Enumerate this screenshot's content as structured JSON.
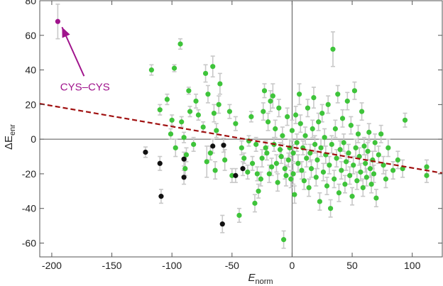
{
  "chart_data": {
    "type": "scatter",
    "title": "",
    "xlabel": {
      "main": "E",
      "sub": "norm"
    },
    "ylabel": {
      "prefix": "ΔE",
      "sub": "enr"
    },
    "xlim": [
      -210,
      125
    ],
    "ylim": [
      -68,
      80
    ],
    "xticks": [
      -200,
      -150,
      -100,
      -50,
      0,
      50,
      100
    ],
    "yticks": [
      -60,
      -40,
      -20,
      0,
      20,
      40,
      60,
      80
    ],
    "grid": false,
    "reference_lines": {
      "x": 0,
      "y": 0
    },
    "colors": {
      "green": "#3ec43a",
      "black": "#111111",
      "highlight": "#a0148c",
      "fit": "#a01010",
      "errorbar": "#c8c8c8",
      "axes": "#555555"
    },
    "fit_line": {
      "x": [
        -210,
        125
      ],
      "y": [
        20.5,
        -19.6
      ],
      "style": "dashed"
    },
    "highlight": {
      "x": -195,
      "y": 68,
      "err": 10,
      "label": "CYS–CYS",
      "label_x": -193,
      "label_y": 43
    },
    "series_black": [
      {
        "x": -122,
        "y": -7.5,
        "err": 3
      },
      {
        "x": -110,
        "y": -14,
        "err": 4
      },
      {
        "x": -109,
        "y": -33,
        "err": 4
      },
      {
        "x": -90,
        "y": -11.5,
        "err": 4
      },
      {
        "x": -90,
        "y": -22,
        "err": 4
      },
      {
        "x": -66,
        "y": -4,
        "err": 4
      },
      {
        "x": -58,
        "y": -49,
        "err": 5
      },
      {
        "x": -57,
        "y": -3.5,
        "err": 4
      },
      {
        "x": -47,
        "y": -21,
        "err": 4
      },
      {
        "x": -41,
        "y": -17,
        "err": 4
      }
    ],
    "series_green": [
      {
        "x": -117,
        "y": 40,
        "err": 3
      },
      {
        "x": -110,
        "y": 17,
        "err": 3
      },
      {
        "x": -104,
        "y": 23,
        "err": 3
      },
      {
        "x": -101,
        "y": 3,
        "err": 3
      },
      {
        "x": -100,
        "y": 11,
        "err": 3
      },
      {
        "x": -98,
        "y": 41,
        "err": 2
      },
      {
        "x": -97,
        "y": -5,
        "err": 5
      },
      {
        "x": -93,
        "y": 55,
        "err": 3
      },
      {
        "x": -92,
        "y": 10,
        "err": 3
      },
      {
        "x": -90,
        "y": 1,
        "err": 3
      },
      {
        "x": -89,
        "y": -17,
        "err": 4
      },
      {
        "x": -88,
        "y": -9,
        "err": 4
      },
      {
        "x": -86,
        "y": 28,
        "err": 2
      },
      {
        "x": -85,
        "y": 16,
        "err": 3
      },
      {
        "x": -82,
        "y": -3,
        "err": 4
      },
      {
        "x": -80,
        "y": 22,
        "err": 4
      },
      {
        "x": -78,
        "y": 14,
        "err": 3
      },
      {
        "x": -74,
        "y": 7,
        "err": 3
      },
      {
        "x": -72,
        "y": 38,
        "err": 5
      },
      {
        "x": -71,
        "y": -13,
        "err": 9
      },
      {
        "x": -70,
        "y": 26,
        "err": 5
      },
      {
        "x": -68,
        "y": -8,
        "err": 4
      },
      {
        "x": -66,
        "y": 42,
        "err": 6
      },
      {
        "x": -65,
        "y": 15,
        "err": 5
      },
      {
        "x": -64,
        "y": -18,
        "err": 5
      },
      {
        "x": -63,
        "y": 5,
        "err": 4
      },
      {
        "x": -61,
        "y": 20,
        "err": 5
      },
      {
        "x": -60,
        "y": 32,
        "err": 6
      },
      {
        "x": -56,
        "y": -12,
        "err": 6
      },
      {
        "x": -52,
        "y": 16,
        "err": 4
      },
      {
        "x": -50,
        "y": -21,
        "err": 4
      },
      {
        "x": -47,
        "y": 9,
        "err": 4
      },
      {
        "x": -44,
        "y": -44,
        "err": 4
      },
      {
        "x": -42,
        "y": -5,
        "err": 4
      },
      {
        "x": -40,
        "y": -11,
        "err": 3
      },
      {
        "x": -37,
        "y": -19,
        "err": 4
      },
      {
        "x": -36,
        "y": -1,
        "err": 3
      },
      {
        "x": -34,
        "y": 13,
        "err": 3
      },
      {
        "x": -33,
        "y": -14,
        "err": 4
      },
      {
        "x": -31,
        "y": -37,
        "err": 5
      },
      {
        "x": -30,
        "y": -3,
        "err": 4
      },
      {
        "x": -29,
        "y": -20,
        "err": 4
      },
      {
        "x": -28,
        "y": -30,
        "err": 4
      },
      {
        "x": -26,
        "y": -23,
        "err": 4
      },
      {
        "x": -25,
        "y": -11,
        "err": 5
      },
      {
        "x": -24,
        "y": 16,
        "err": 5
      },
      {
        "x": -23,
        "y": 28,
        "err": 4
      },
      {
        "x": -22,
        "y": -5,
        "err": 4
      },
      {
        "x": -21,
        "y": -8,
        "err": 4
      },
      {
        "x": -20,
        "y": 10,
        "err": 5
      },
      {
        "x": -19,
        "y": -20,
        "err": 5
      },
      {
        "x": -18,
        "y": 22,
        "err": 6
      },
      {
        "x": -17,
        "y": -16,
        "err": 5
      },
      {
        "x": -16,
        "y": 25,
        "err": 7
      },
      {
        "x": -15,
        "y": -3,
        "err": 4
      },
      {
        "x": -14,
        "y": 6,
        "err": 5
      },
      {
        "x": -13,
        "y": -14,
        "err": 5
      },
      {
        "x": -12,
        "y": -25,
        "err": 5
      },
      {
        "x": -11,
        "y": 18,
        "err": 5
      },
      {
        "x": -10,
        "y": -6,
        "err": 4
      },
      {
        "x": -9,
        "y": -10,
        "err": 4
      },
      {
        "x": -8,
        "y": 2,
        "err": 5
      },
      {
        "x": -7,
        "y": -58,
        "err": 5
      },
      {
        "x": -6,
        "y": -17,
        "err": 6
      },
      {
        "x": -5,
        "y": -21,
        "err": 6
      },
      {
        "x": -4,
        "y": 13,
        "err": 5
      },
      {
        "x": -3,
        "y": -12,
        "err": 4
      },
      {
        "x": -2,
        "y": -5,
        "err": 5
      },
      {
        "x": -1,
        "y": -23,
        "err": 5
      },
      {
        "x": 0,
        "y": 5,
        "err": 6
      },
      {
        "x": 1,
        "y": -8,
        "err": 5
      },
      {
        "x": 1,
        "y": -20,
        "err": 6
      },
      {
        "x": 2,
        "y": -32,
        "err": 5
      },
      {
        "x": 3,
        "y": 14,
        "err": 5
      },
      {
        "x": 4,
        "y": -2,
        "err": 5
      },
      {
        "x": 5,
        "y": -14,
        "err": 5
      },
      {
        "x": 6,
        "y": 26,
        "err": 6
      },
      {
        "x": 7,
        "y": 9,
        "err": 5
      },
      {
        "x": 8,
        "y": -18,
        "err": 5
      },
      {
        "x": 9,
        "y": -5,
        "err": 4
      },
      {
        "x": 10,
        "y": -24,
        "err": 5
      },
      {
        "x": 11,
        "y": 2,
        "err": 5
      },
      {
        "x": 12,
        "y": -11,
        "err": 5
      },
      {
        "x": 13,
        "y": 18,
        "err": 5
      },
      {
        "x": 14,
        "y": -28,
        "err": 5
      },
      {
        "x": 15,
        "y": -8,
        "err": 5
      },
      {
        "x": 16,
        "y": -17,
        "err": 5
      },
      {
        "x": 17,
        "y": 6,
        "err": 5
      },
      {
        "x": 18,
        "y": 24,
        "err": 6
      },
      {
        "x": 19,
        "y": -3,
        "err": 5
      },
      {
        "x": 20,
        "y": -22,
        "err": 5
      },
      {
        "x": 21,
        "y": -12,
        "err": 5
      },
      {
        "x": 22,
        "y": 10,
        "err": 5
      },
      {
        "x": 23,
        "y": -36,
        "err": 5
      },
      {
        "x": 24,
        "y": -5,
        "err": 5
      },
      {
        "x": 25,
        "y": 15,
        "err": 5
      },
      {
        "x": 26,
        "y": -19,
        "err": 5
      },
      {
        "x": 27,
        "y": 1,
        "err": 5
      },
      {
        "x": 28,
        "y": -9,
        "err": 5
      },
      {
        "x": 29,
        "y": -27,
        "err": 5
      },
      {
        "x": 30,
        "y": 20,
        "err": 5
      },
      {
        "x": 31,
        "y": -15,
        "err": 5
      },
      {
        "x": 32,
        "y": -40,
        "err": 5
      },
      {
        "x": 33,
        "y": -3,
        "err": 5
      },
      {
        "x": 34,
        "y": 52,
        "err": 10
      },
      {
        "x": 35,
        "y": -23,
        "err": 5
      },
      {
        "x": 36,
        "y": 6,
        "err": 5
      },
      {
        "x": 37,
        "y": -11,
        "err": 5
      },
      {
        "x": 38,
        "y": 26,
        "err": 5
      },
      {
        "x": 39,
        "y": -31,
        "err": 5
      },
      {
        "x": 40,
        "y": -6,
        "err": 5
      },
      {
        "x": 41,
        "y": -18,
        "err": 5
      },
      {
        "x": 42,
        "y": 12,
        "err": 5
      },
      {
        "x": 43,
        "y": -2,
        "err": 5
      },
      {
        "x": 44,
        "y": -26,
        "err": 5
      },
      {
        "x": 45,
        "y": -13,
        "err": 5
      },
      {
        "x": 46,
        "y": 22,
        "err": 5
      },
      {
        "x": 47,
        "y": -8,
        "err": 5
      },
      {
        "x": 48,
        "y": -21,
        "err": 5
      },
      {
        "x": 49,
        "y": 8,
        "err": 5
      },
      {
        "x": 50,
        "y": -33,
        "err": 5
      },
      {
        "x": 51,
        "y": -15,
        "err": 5
      },
      {
        "x": 52,
        "y": 28,
        "err": 5
      },
      {
        "x": 53,
        "y": -5,
        "err": 5
      },
      {
        "x": 54,
        "y": -24,
        "err": 5
      },
      {
        "x": 55,
        "y": 3,
        "err": 5
      },
      {
        "x": 56,
        "y": -10,
        "err": 5
      },
      {
        "x": 57,
        "y": -19,
        "err": 5
      },
      {
        "x": 58,
        "y": 16,
        "err": 5
      },
      {
        "x": 59,
        "y": -28,
        "err": 5
      },
      {
        "x": 60,
        "y": -4,
        "err": 5
      },
      {
        "x": 61,
        "y": -14,
        "err": 5
      },
      {
        "x": 62,
        "y": -22,
        "err": 5
      },
      {
        "x": 63,
        "y": -7,
        "err": 5
      },
      {
        "x": 64,
        "y": 4,
        "err": 5
      },
      {
        "x": 65,
        "y": -17,
        "err": 5
      },
      {
        "x": 66,
        "y": -26,
        "err": 5
      },
      {
        "x": 67,
        "y": -12,
        "err": 5
      },
      {
        "x": 68,
        "y": -20,
        "err": 5
      },
      {
        "x": 69,
        "y": -2,
        "err": 5
      },
      {
        "x": 70,
        "y": -34,
        "err": 5
      },
      {
        "x": 72,
        "y": -9,
        "err": 5
      },
      {
        "x": 74,
        "y": 3,
        "err": 5
      },
      {
        "x": 76,
        "y": -15,
        "err": 5
      },
      {
        "x": 78,
        "y": -23,
        "err": 5
      },
      {
        "x": 80,
        "y": -5,
        "err": 5
      },
      {
        "x": 84,
        "y": -18,
        "err": 5
      },
      {
        "x": 88,
        "y": -12,
        "err": 5
      },
      {
        "x": 92,
        "y": -17,
        "err": 5
      },
      {
        "x": 94,
        "y": 11,
        "err": 4
      },
      {
        "x": 112,
        "y": -16,
        "err": 4
      },
      {
        "x": 112,
        "y": -21,
        "err": 4
      }
    ]
  }
}
